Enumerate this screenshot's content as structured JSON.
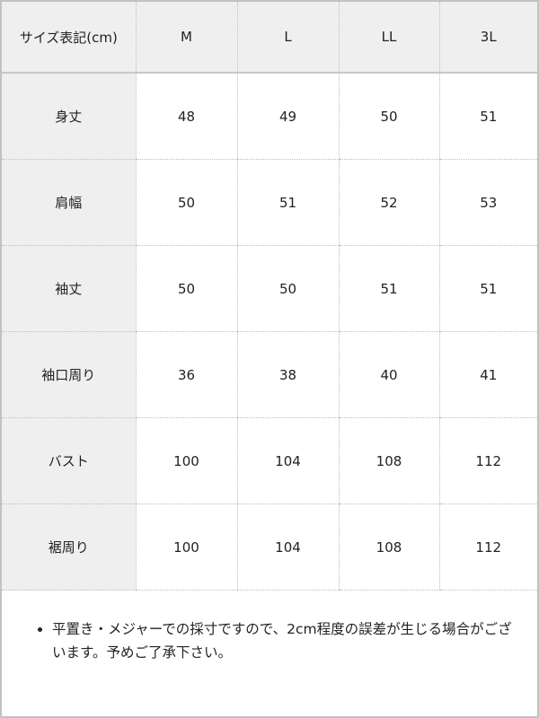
{
  "table": {
    "headers": [
      "サイズ表記(cm)",
      "M",
      "L",
      "LL",
      "3L"
    ],
    "rows": [
      {
        "label": "身丈",
        "values": [
          "48",
          "49",
          "50",
          "51"
        ]
      },
      {
        "label": "肩幅",
        "values": [
          "50",
          "51",
          "52",
          "53"
        ]
      },
      {
        "label": "袖丈",
        "values": [
          "50",
          "50",
          "51",
          "51"
        ]
      },
      {
        "label": "袖口周り",
        "values": [
          "36",
          "38",
          "40",
          "41"
        ]
      },
      {
        "label": "バスト",
        "values": [
          "100",
          "104",
          "108",
          "112"
        ]
      },
      {
        "label": "裾周り",
        "values": [
          "100",
          "104",
          "108",
          "112"
        ]
      }
    ]
  },
  "notes": [
    "平置き・メジャーでの採寸ですので、2cm程度の誤差が生じる場合がございます。予めご了承下さい。"
  ]
}
